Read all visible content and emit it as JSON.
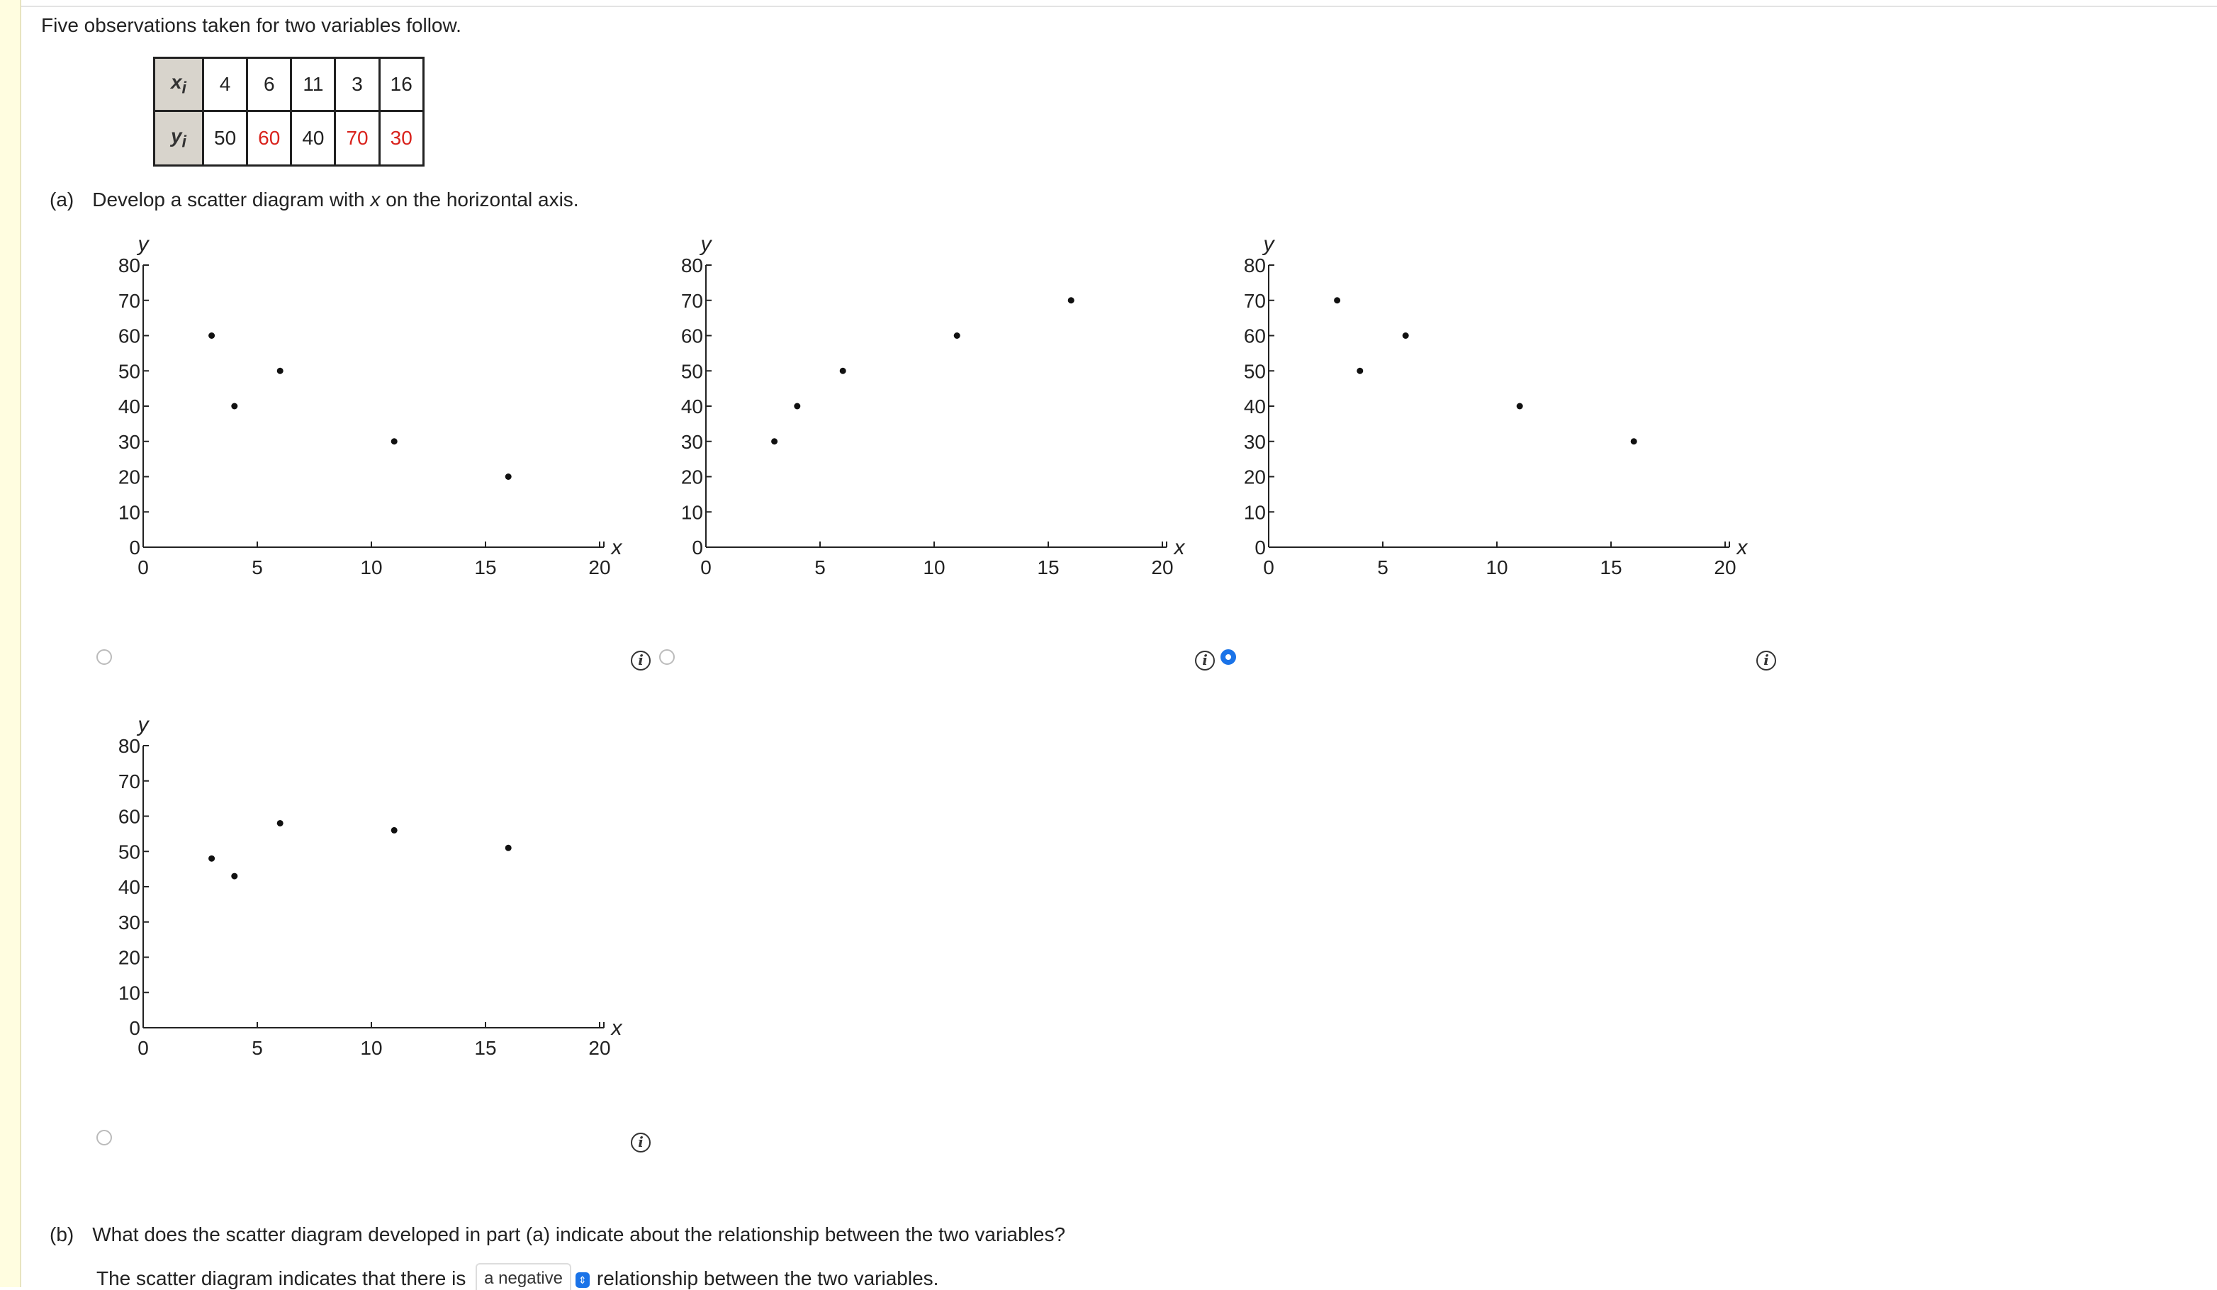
{
  "intro": "Five observations taken for two variables follow.",
  "table": {
    "x_label": "x",
    "x_sub": "i",
    "y_label": "y",
    "y_sub": "i",
    "x_values": [
      "4",
      "6",
      "11",
      "3",
      "16"
    ],
    "y_values": [
      "50",
      "60",
      "40",
      "70",
      "30"
    ]
  },
  "part_a": {
    "label": "(a)",
    "text_before": "Develop a scatter diagram with ",
    "text_var": "x",
    "text_after": " on the horizontal axis."
  },
  "part_b": {
    "label": "(b)",
    "text": "What does the scatter diagram developed in part (a) indicate about the relationship between the two variables?"
  },
  "answer": {
    "before": "The scatter diagram indicates that there is",
    "selected": "a negative",
    "after": "relationship between the two variables."
  },
  "colors": {
    "red_value": "#d9231d",
    "radio_selected": "#1a73e8"
  },
  "chart_data": [
    {
      "type": "scatter",
      "xlabel": "x",
      "ylabel": "y",
      "xlim": [
        0,
        20
      ],
      "ylim": [
        0,
        80
      ],
      "x_ticks": [
        0,
        5,
        10,
        15,
        20
      ],
      "y_ticks": [
        0,
        10,
        20,
        30,
        40,
        50,
        60,
        70,
        80
      ],
      "points": [
        [
          3,
          60
        ],
        [
          4,
          40
        ],
        [
          6,
          50
        ],
        [
          11,
          30
        ],
        [
          16,
          20
        ]
      ],
      "selected": false
    },
    {
      "type": "scatter",
      "xlabel": "x",
      "ylabel": "y",
      "xlim": [
        0,
        20
      ],
      "ylim": [
        0,
        80
      ],
      "x_ticks": [
        0,
        5,
        10,
        15,
        20
      ],
      "y_ticks": [
        0,
        10,
        20,
        30,
        40,
        50,
        60,
        70,
        80
      ],
      "points": [
        [
          3,
          30
        ],
        [
          4,
          40
        ],
        [
          6,
          50
        ],
        [
          11,
          60
        ],
        [
          16,
          70
        ]
      ],
      "selected": false
    },
    {
      "type": "scatter",
      "xlabel": "x",
      "ylabel": "y",
      "xlim": [
        0,
        20
      ],
      "ylim": [
        0,
        80
      ],
      "x_ticks": [
        0,
        5,
        10,
        15,
        20
      ],
      "y_ticks": [
        0,
        10,
        20,
        30,
        40,
        50,
        60,
        70,
        80
      ],
      "points": [
        [
          3,
          70
        ],
        [
          4,
          50
        ],
        [
          6,
          60
        ],
        [
          11,
          40
        ],
        [
          16,
          30
        ]
      ],
      "selected": true
    },
    {
      "type": "scatter",
      "xlabel": "x",
      "ylabel": "y",
      "xlim": [
        0,
        20
      ],
      "ylim": [
        0,
        80
      ],
      "x_ticks": [
        0,
        5,
        10,
        15,
        20
      ],
      "y_ticks": [
        0,
        10,
        20,
        30,
        40,
        50,
        60,
        70,
        80
      ],
      "points": [
        [
          3,
          48
        ],
        [
          4,
          43
        ],
        [
          6,
          58
        ],
        [
          11,
          56
        ],
        [
          16,
          51
        ]
      ],
      "selected": false
    }
  ]
}
